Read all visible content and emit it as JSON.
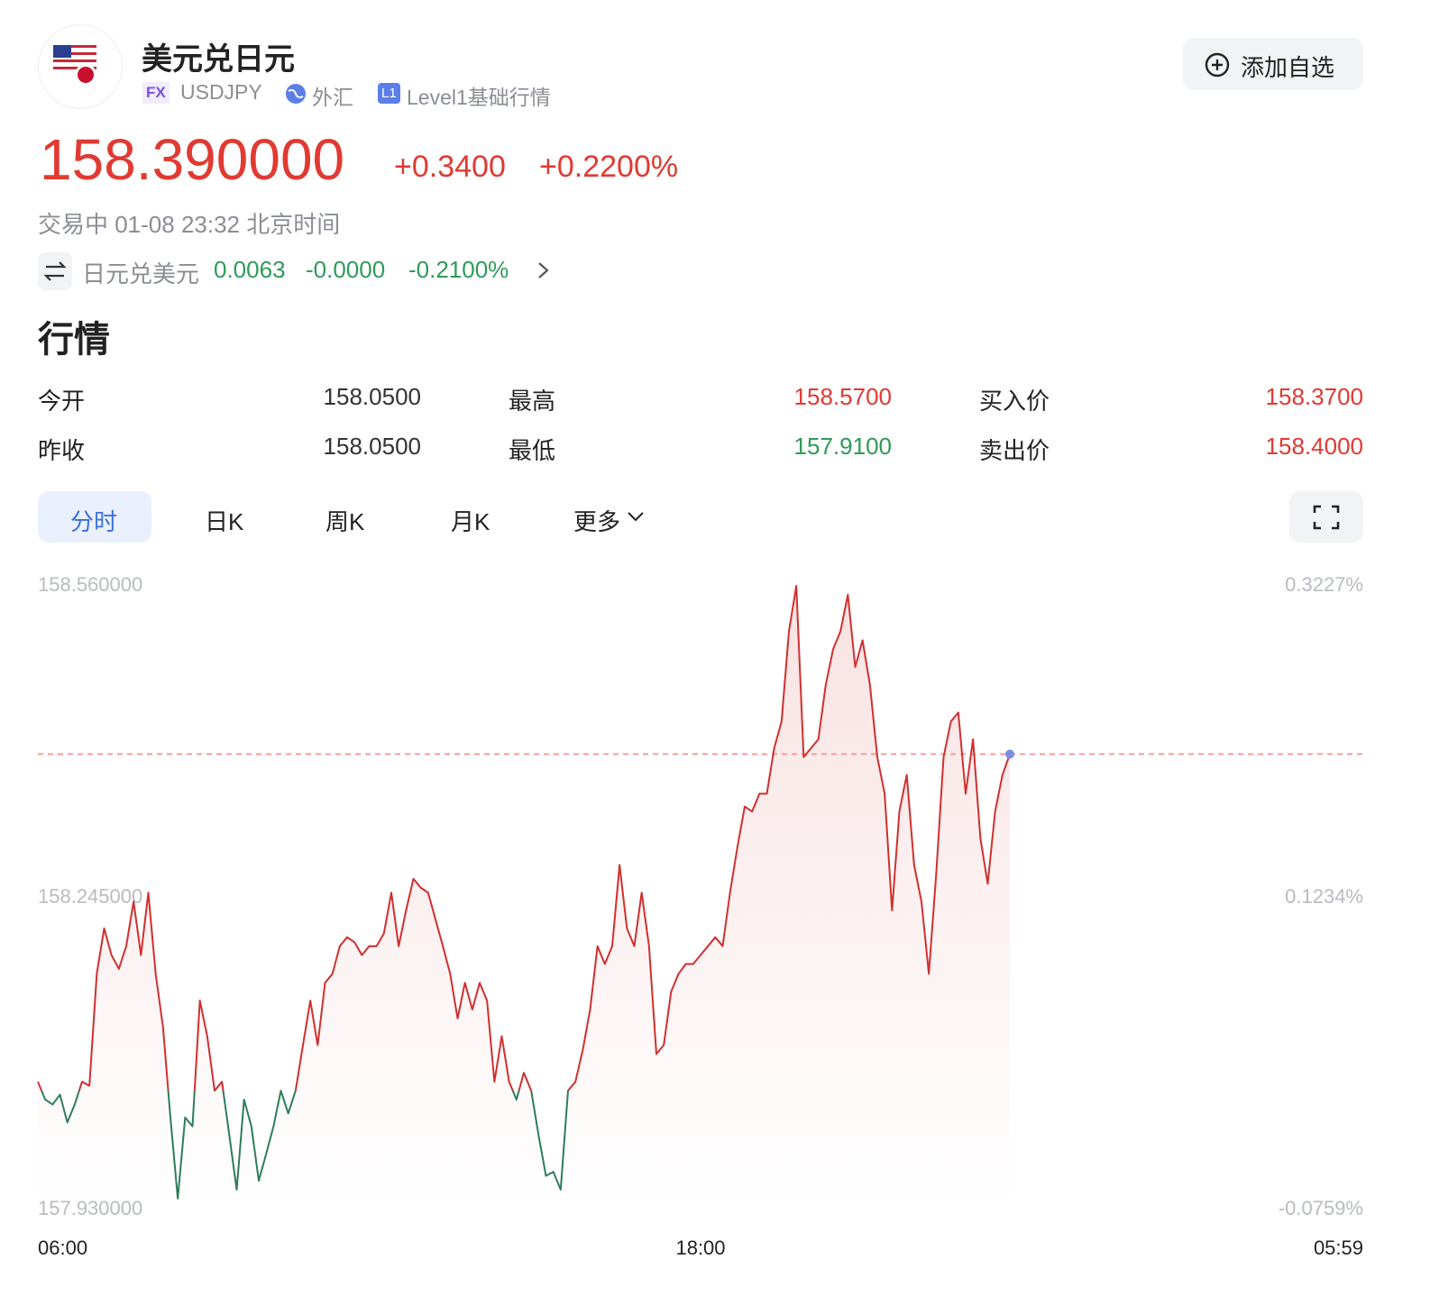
{
  "header": {
    "title": "美元兑日元",
    "tag": "FX",
    "code": "USDJPY",
    "market": "外汇",
    "level_tag": "L1",
    "level": "Level1基础行情",
    "button": "添加自选"
  },
  "price": {
    "last": "158.390000",
    "change": "+0.3400",
    "change_pct": "+0.2200%",
    "status": "交易中 01-08 23:32 北京时间"
  },
  "inverse": {
    "name": "日元兑美元",
    "last": "0.0063",
    "change": "-0.0000",
    "change_pct": "-0.2100%"
  },
  "section": "行情",
  "quote": {
    "rows": [
      [
        "今开",
        "158.0500",
        "最高",
        "158.5700",
        "买入价",
        "158.3700"
      ],
      [
        "昨收",
        "158.0500",
        "最低",
        "157.9100",
        "卖出价",
        "158.4000"
      ]
    ]
  },
  "tabs": [
    "分时",
    "日K",
    "周K",
    "月K",
    "更多"
  ],
  "chart_data": {
    "type": "line",
    "color": "#d0302f",
    "down_color": "#2d7d5a",
    "end_color": "#7b8fe0",
    "grid": false,
    "categories": [
      "06:00",
      null,
      null,
      null,
      null,
      null,
      null,
      null,
      null,
      null,
      null,
      null,
      null,
      null,
      null,
      null,
      null,
      null,
      null,
      null,
      null,
      null,
      null,
      null,
      null,
      null,
      null,
      null,
      null,
      null,
      null,
      null,
      null,
      null,
      null,
      null,
      null,
      null,
      null,
      null,
      null,
      null,
      null,
      null,
      null,
      null,
      null,
      null,
      null,
      null,
      null,
      null,
      null,
      null,
      null,
      null,
      null,
      null,
      null,
      null,
      null,
      null,
      null,
      null,
      null,
      null,
      null,
      null,
      null,
      null,
      null,
      null,
      null,
      null,
      null,
      null,
      null,
      null,
      null,
      null,
      null,
      null,
      null,
      null,
      null,
      null,
      null,
      null,
      null,
      null,
      "18:00",
      null,
      null,
      null,
      null,
      null,
      null,
      null,
      null,
      null,
      null,
      null,
      null,
      null,
      null,
      null,
      null,
      null,
      null,
      null,
      null,
      null,
      null,
      null,
      null,
      null,
      null,
      null,
      null,
      null,
      null,
      null,
      null,
      null,
      null,
      null,
      null,
      null,
      null,
      null,
      null,
      null,
      null,
      null,
      null,
      null,
      null,
      null,
      null,
      null,
      null,
      null,
      null,
      null,
      null,
      null,
      null,
      null,
      null,
      null,
      null,
      null,
      null,
      null,
      null,
      null,
      null,
      null,
      null,
      null,
      null,
      null,
      null,
      null,
      null,
      null,
      null,
      null,
      null,
      null,
      null,
      null,
      null,
      null,
      null,
      null,
      null,
      null,
      null,
      null,
      "05:59"
    ],
    "values": [
      158.059,
      158.041,
      158.036,
      158.046,
      158.018,
      158.036,
      158.059,
      158.055,
      158.168,
      158.214,
      158.187,
      158.173,
      158.196,
      158.241,
      158.187,
      158.25,
      158.168,
      158.114,
      158.023,
      157.941,
      158.023,
      158.014,
      158.141,
      158.105,
      158.05,
      158.059,
      158.005,
      157.95,
      158.041,
      158.014,
      157.959,
      157.986,
      158.014,
      158.05,
      158.027,
      158.05,
      158.096,
      158.141,
      158.096,
      158.159,
      158.168,
      158.196,
      158.205,
      158.2,
      158.187,
      158.196,
      158.196,
      158.209,
      158.25,
      158.196,
      158.232,
      158.264,
      158.255,
      158.25,
      158.223,
      158.196,
      158.168,
      158.123,
      158.159,
      158.132,
      158.159,
      158.141,
      158.059,
      158.105,
      158.059,
      158.041,
      158.068,
      158.05,
      158.005,
      157.964,
      157.968,
      157.95,
      158.05,
      158.059,
      158.091,
      158.132,
      158.196,
      158.178,
      158.196,
      158.278,
      158.214,
      158.196,
      158.25,
      158.196,
      158.087,
      158.096,
      158.15,
      158.168,
      158.178,
      158.178,
      158.187,
      158.196,
      158.205,
      158.196,
      158.25,
      158.296,
      158.337,
      158.332,
      158.35,
      158.35,
      158.396,
      158.423,
      158.514,
      158.56,
      158.387,
      158.396,
      158.405,
      158.46,
      158.496,
      158.514,
      158.551,
      158.478,
      158.505,
      158.46,
      158.387,
      158.35,
      158.232,
      158.332,
      158.369,
      158.278,
      158.241,
      158.168,
      158.269,
      158.387,
      158.423,
      158.432,
      158.35,
      158.405,
      158.305,
      158.259,
      158.332,
      158.369,
      158.39,
      null,
      null,
      null,
      null,
      null,
      null,
      null,
      null,
      null,
      null,
      null,
      null,
      null,
      null,
      null,
      null,
      null,
      null,
      null,
      null,
      null,
      null,
      null,
      null,
      null,
      null,
      null,
      null,
      null,
      null,
      null,
      null,
      null,
      null,
      null,
      null,
      null,
      null,
      null,
      null,
      null,
      null,
      null,
      null,
      null,
      null,
      null,
      null
    ],
    "ylim": [
      157.93,
      158.56
    ],
    "yticks": [
      {
        "value": 158.56,
        "label": "158.560000"
      },
      {
        "value": 158.245,
        "label": "158.245000"
      },
      {
        "value": 157.93,
        "label": "157.930000"
      }
    ],
    "y2lim": [
      -0.0759,
      0.3227
    ],
    "y2ticks": [
      {
        "value": 0.3227,
        "label": "0.3227%"
      },
      {
        "value": 0.1234,
        "label": "0.1234%"
      },
      {
        "value": -0.0759,
        "label": "-0.0759%"
      }
    ]
  }
}
